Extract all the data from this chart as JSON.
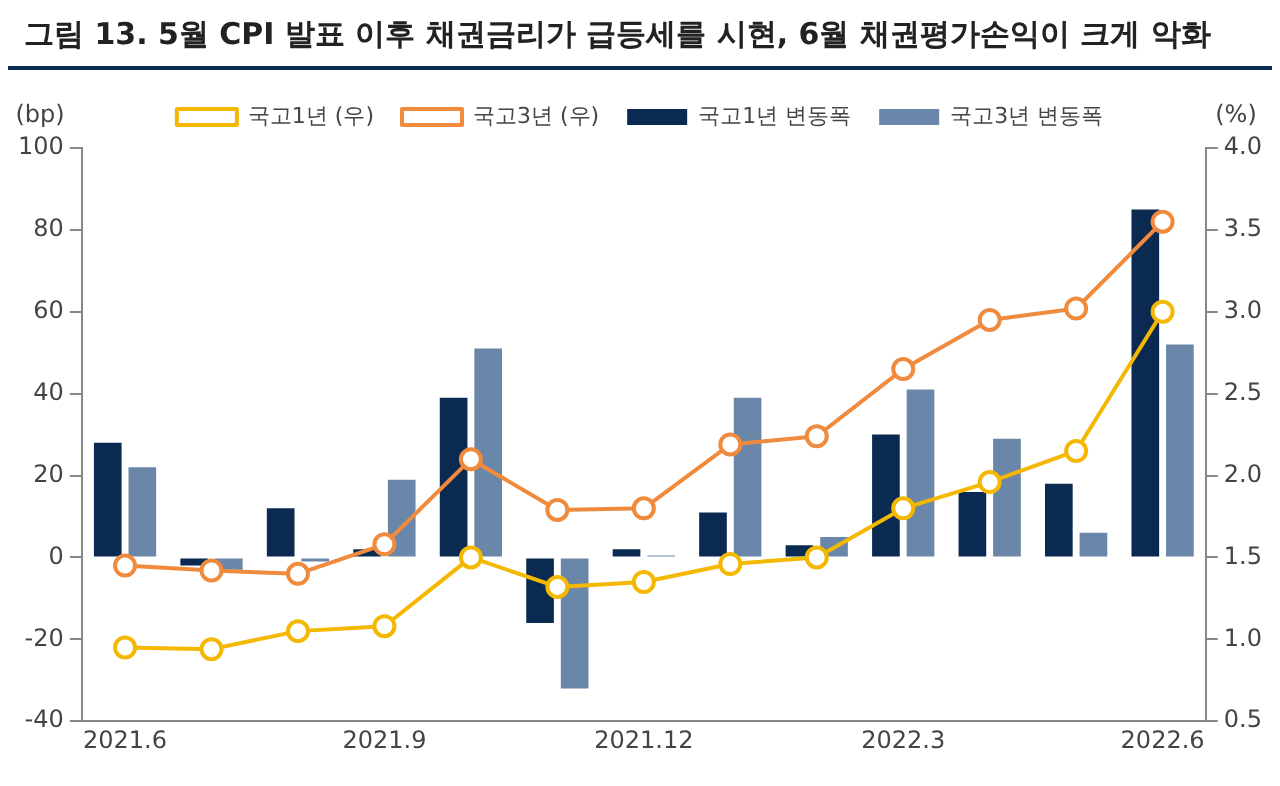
{
  "chart_data": {
    "type": "bar",
    "title": "그림 13. 5월 CPI 발표 이후 채권금리가 급등세를 시현, 6월 채권평가손익이 크게 악화",
    "ylabel": "(bp)",
    "y2label": "(%)",
    "categories": [
      "2021.6",
      null,
      null,
      "2021.9",
      null,
      null,
      "2021.12",
      null,
      null,
      "2022.3",
      null,
      null,
      "2022.6"
    ],
    "series": [
      {
        "name": "국고1년 변동폭",
        "color": "#0b2a52",
        "values": [
          28,
          -2,
          12,
          2,
          39,
          -16,
          2,
          11,
          3,
          30,
          16,
          18,
          85
        ]
      },
      {
        "name": "국고3년 변동폭",
        "color": "#6a86a8",
        "values": [
          22,
          -3,
          -1,
          19,
          51,
          -32,
          0.5,
          39,
          5,
          41,
          29,
          6,
          52
        ]
      },
      {
        "name": "국고1년 (우)",
        "type": "line",
        "axis": "y2",
        "color": "#f5b800",
        "values": [
          0.95,
          0.94,
          1.05,
          1.08,
          1.5,
          1.32,
          1.35,
          1.46,
          1.5,
          1.8,
          1.96,
          2.15,
          3.0
        ]
      },
      {
        "name": "국고3년 (우)",
        "type": "line",
        "axis": "y2",
        "color": "#f08a3c",
        "values": [
          1.45,
          1.42,
          1.4,
          1.58,
          2.1,
          1.79,
          1.8,
          2.19,
          2.24,
          2.65,
          2.95,
          3.02,
          3.55
        ]
      }
    ],
    "ylim": [
      -40,
      100
    ],
    "yticks": [
      -40,
      -20,
      0,
      20,
      40,
      60,
      80,
      100
    ],
    "y2lim": [
      0.5,
      4.0
    ],
    "y2ticks": [
      {
        "value": 0.5,
        "label": "0.5"
      },
      {
        "value": 1,
        "label": "1.0"
      },
      {
        "value": 1.5,
        "label": "1.5"
      },
      {
        "value": 2,
        "label": "2.0"
      },
      {
        "value": 2.5,
        "label": "2.5"
      },
      {
        "value": 3,
        "label": "3.0"
      },
      {
        "value": 3.5,
        "label": "3.5"
      },
      {
        "value": 4,
        "label": "4.0"
      }
    ],
    "marker": "circle",
    "legend": "top",
    "grid": false
  }
}
